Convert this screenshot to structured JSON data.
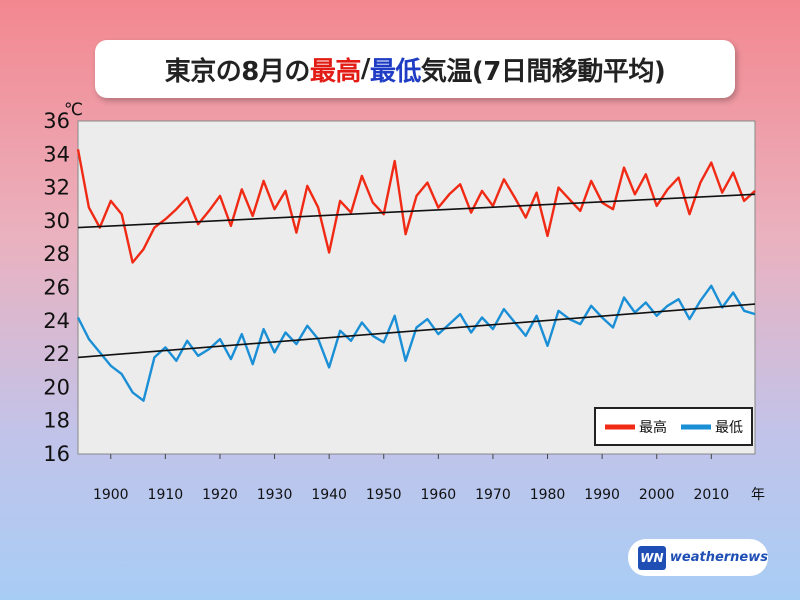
{
  "title": {
    "part1": "東京の8月の",
    "part_max": "最高",
    "sep": "/",
    "part_min": "最低",
    "part2": "気温(7日間移動平均)"
  },
  "colors": {
    "max": "#f02a14",
    "min": "#1a8fd6",
    "trend": "#111111"
  },
  "logo": {
    "text": "weathernews",
    "mark": "WN"
  },
  "chart_data": {
    "type": "line",
    "title": "東京の8月の最高/最低気温(7日間移動平均)",
    "y_unit": "℃",
    "x_unit": "年",
    "ylim": [
      16,
      36
    ],
    "yticks": [
      16,
      18,
      20,
      22,
      24,
      26,
      28,
      30,
      32,
      34,
      36
    ],
    "xlim": [
      1894,
      2018
    ],
    "xticks": [
      1900,
      1910,
      1920,
      1930,
      1940,
      1950,
      1960,
      1970,
      1980,
      1990,
      2000,
      2010
    ],
    "xtick_labels": [
      "1900",
      "1910",
      "1920",
      "1930",
      "1940",
      "1950",
      "1960",
      "1970",
      "1980",
      "1990",
      "2000",
      "2010"
    ],
    "grid": false,
    "legend_position": "bottom-right",
    "series": [
      {
        "name": "最高",
        "color": "#f02a14",
        "x": [
          1894,
          1896,
          1898,
          1900,
          1902,
          1904,
          1906,
          1908,
          1910,
          1912,
          1914,
          1916,
          1918,
          1920,
          1922,
          1924,
          1926,
          1928,
          1930,
          1932,
          1934,
          1936,
          1938,
          1940,
          1942,
          1944,
          1946,
          1948,
          1950,
          1952,
          1954,
          1956,
          1958,
          1960,
          1962,
          1964,
          1966,
          1968,
          1970,
          1972,
          1974,
          1976,
          1978,
          1980,
          1982,
          1984,
          1986,
          1988,
          1990,
          1992,
          1994,
          1996,
          1998,
          2000,
          2002,
          2004,
          2006,
          2008,
          2010,
          2012,
          2014,
          2016,
          2018
        ],
        "y": [
          34.3,
          30.8,
          29.6,
          31.2,
          30.4,
          27.5,
          28.3,
          29.6,
          30.1,
          30.7,
          31.4,
          29.8,
          30.6,
          31.5,
          29.7,
          31.9,
          30.3,
          32.4,
          30.7,
          31.8,
          29.3,
          32.1,
          30.8,
          28.1,
          31.2,
          30.5,
          32.7,
          31.1,
          30.4,
          33.6,
          29.2,
          31.5,
          32.3,
          30.8,
          31.6,
          32.2,
          30.5,
          31.8,
          30.9,
          32.5,
          31.4,
          30.2,
          31.7,
          29.1,
          32.0,
          31.3,
          30.6,
          32.4,
          31.1,
          30.7,
          33.2,
          31.6,
          32.8,
          30.9,
          31.9,
          32.6,
          30.4,
          32.3,
          33.5,
          31.7,
          32.9,
          31.2,
          31.8
        ]
      },
      {
        "name": "最低",
        "color": "#1a8fd6",
        "x": [
          1894,
          1896,
          1898,
          1900,
          1902,
          1904,
          1906,
          1908,
          1910,
          1912,
          1914,
          1916,
          1918,
          1920,
          1922,
          1924,
          1926,
          1928,
          1930,
          1932,
          1934,
          1936,
          1938,
          1940,
          1942,
          1944,
          1946,
          1948,
          1950,
          1952,
          1954,
          1956,
          1958,
          1960,
          1962,
          1964,
          1966,
          1968,
          1970,
          1972,
          1974,
          1976,
          1978,
          1980,
          1982,
          1984,
          1986,
          1988,
          1990,
          1992,
          1994,
          1996,
          1998,
          2000,
          2002,
          2004,
          2006,
          2008,
          2010,
          2012,
          2014,
          2016,
          2018
        ],
        "y": [
          24.2,
          22.9,
          22.1,
          21.3,
          20.8,
          19.7,
          19.2,
          21.8,
          22.4,
          21.6,
          22.8,
          21.9,
          22.3,
          22.9,
          21.7,
          23.2,
          21.4,
          23.5,
          22.1,
          23.3,
          22.6,
          23.7,
          22.9,
          21.2,
          23.4,
          22.8,
          23.9,
          23.1,
          22.7,
          24.3,
          21.6,
          23.6,
          24.1,
          23.2,
          23.8,
          24.4,
          23.3,
          24.2,
          23.5,
          24.7,
          23.9,
          23.1,
          24.3,
          22.5,
          24.6,
          24.1,
          23.8,
          24.9,
          24.2,
          23.6,
          25.4,
          24.5,
          25.1,
          24.3,
          24.9,
          25.3,
          24.1,
          25.2,
          26.1,
          24.8,
          25.7,
          24.6,
          24.4
        ]
      },
      {
        "name": "",
        "color": "#111111",
        "x": [
          1894,
          2018
        ],
        "y": [
          29.6,
          31.6
        ]
      },
      {
        "name": "",
        "color": "#111111",
        "x": [
          1894,
          2018
        ],
        "y": [
          21.8,
          25.0
        ]
      }
    ]
  }
}
